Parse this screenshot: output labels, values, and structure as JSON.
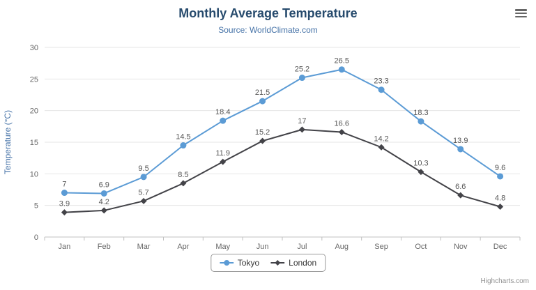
{
  "chart_data": {
    "type": "line",
    "title": "Monthly Average Temperature",
    "subtitle": "Source: WorldClimate.com",
    "categories": [
      "Jan",
      "Feb",
      "Mar",
      "Apr",
      "May",
      "Jun",
      "Jul",
      "Aug",
      "Sep",
      "Oct",
      "Nov",
      "Dec"
    ],
    "series": [
      {
        "name": "Tokyo",
        "color": "#5b9bd5",
        "marker": "circle",
        "values": [
          7,
          6.9,
          9.5,
          14.5,
          18.4,
          21.5,
          25.2,
          26.5,
          23.3,
          18.3,
          13.9,
          9.6
        ]
      },
      {
        "name": "London",
        "color": "#434348",
        "marker": "diamond",
        "values": [
          3.9,
          4.2,
          5.7,
          8.5,
          11.9,
          15.2,
          17,
          16.6,
          14.2,
          10.3,
          6.6,
          4.8
        ]
      }
    ],
    "xlabel": "",
    "ylabel": "Temperature (°C)",
    "ylim": [
      0,
      30
    ],
    "ytick_step": 5,
    "grid": true,
    "data_labels": true,
    "legend_position": "bottom"
  },
  "colors": {
    "title": "#274b6d",
    "subtitle": "#4572a7",
    "grid": "#e6e6e6",
    "axis_line": "#c0c0c0",
    "tick_label": "#666666",
    "data_label": "#555555"
  },
  "credits": {
    "text": "Highcharts.com"
  }
}
